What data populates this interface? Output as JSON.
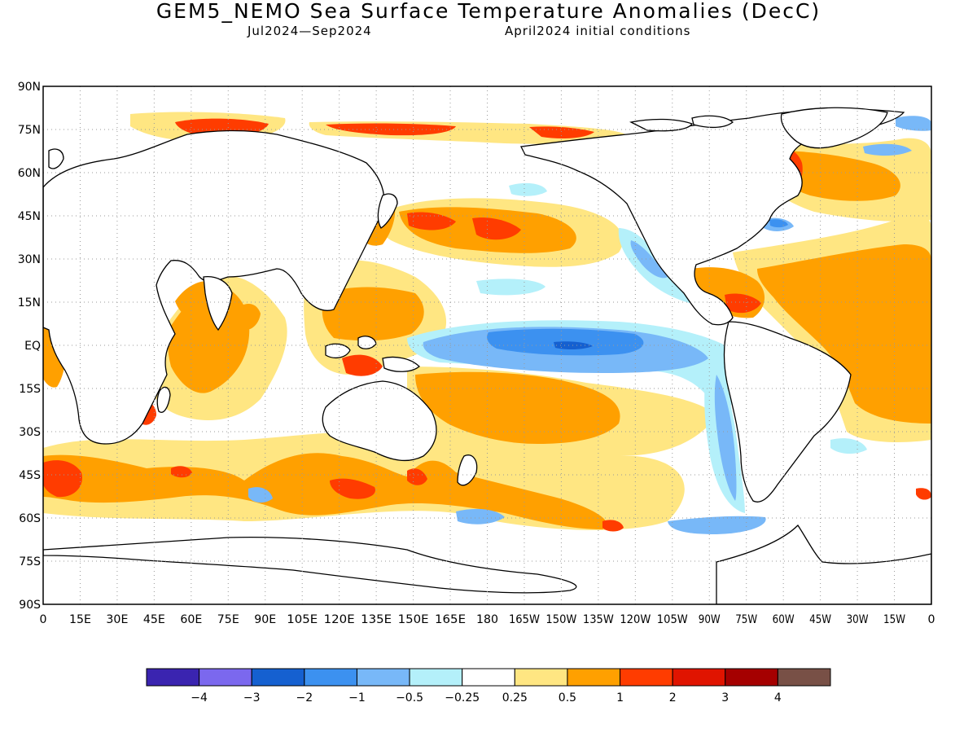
{
  "title": "GEM5_NEMO Sea Surface Temperature Anomalies (DecC)",
  "subtitle_left": "Jul2024—Sep2024",
  "subtitle_right": "April2024 initial conditions",
  "lat_labels": [
    "90N",
    "75N",
    "60N",
    "45N",
    "30N",
    "15N",
    "EQ",
    "15S",
    "30S",
    "45S",
    "60S",
    "75S",
    "90S"
  ],
  "lon_labels": [
    "0",
    "15E",
    "30E",
    "45E",
    "60E",
    "75E",
    "90E",
    "105E",
    "120E",
    "135E",
    "150E",
    "165E",
    "180",
    "165W",
    "150W",
    "135W",
    "120W",
    "105W",
    "90W",
    "75W",
    "60W",
    "45W",
    "30W",
    "15W",
    "0"
  ],
  "colorbar": {
    "colors": [
      "#3a24b0",
      "#7b68ee",
      "#1560d0",
      "#3c91f0",
      "#78b8f8",
      "#b4f0fa",
      "#ffffff",
      "#ffe682",
      "#ffa000",
      "#ff3c00",
      "#e01400",
      "#a50000",
      "#785046"
    ],
    "labels": [
      "−4",
      "−3",
      "−2",
      "−1",
      "−0.5",
      "−0.25",
      "0.25",
      "0.5",
      "1",
      "2",
      "3",
      "4"
    ]
  },
  "anomaly_regions": [
    {
      "name": "equatorial-pacific-cold-tongue",
      "lon": [
        160,
        -80
      ],
      "lat": [
        -8,
        5
      ],
      "class": "−2 to −1"
    },
    {
      "name": "california-current-cool",
      "lon": [
        -130,
        -110
      ],
      "lat": [
        15,
        40
      ],
      "class": "−1"
    },
    {
      "name": "peru-chile-coast-cool",
      "lon": [
        -90,
        -70
      ],
      "lat": [
        -55,
        -5
      ],
      "class": "−1"
    },
    {
      "name": "north-pacific-warm",
      "lon": [
        145,
        -155
      ],
      "lat": [
        35,
        48
      ],
      "class": "1 to 2"
    },
    {
      "name": "caribbean-gulf-warm",
      "lon": [
        -95,
        -60
      ],
      "lat": [
        10,
        25
      ],
      "class": "2"
    },
    {
      "name": "tropical-atlantic-warm",
      "lon": [
        -60,
        0
      ],
      "lat": [
        -20,
        30
      ],
      "class": "0.5 to 1"
    },
    {
      "name": "indian-ocean-warm",
      "lon": [
        40,
        100
      ],
      "lat": [
        -30,
        20
      ],
      "class": "0.5 to 1"
    },
    {
      "name": "southern-ocean-warm-belt",
      "lon": [
        0,
        180
      ],
      "lat": [
        -60,
        -40
      ],
      "class": "1 to 2"
    },
    {
      "name": "labrador-hudson-warm",
      "lon": [
        -95,
        -50
      ],
      "lat": [
        55,
        70
      ],
      "class": "2"
    },
    {
      "name": "arctic-siberian-warm",
      "lon": [
        40,
        180
      ],
      "lat": [
        70,
        78
      ],
      "class": "2"
    }
  ]
}
